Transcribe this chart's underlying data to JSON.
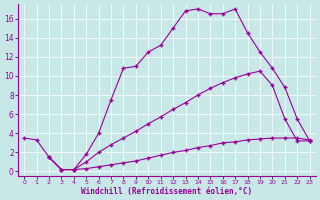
{
  "xlabel": "Windchill (Refroidissement éolien,°C)",
  "bg_color": "#c8e8e8",
  "line_color": "#990099",
  "xlim": [
    -0.5,
    23.5
  ],
  "ylim": [
    -0.5,
    17.5
  ],
  "yticks": [
    0,
    2,
    4,
    6,
    8,
    10,
    12,
    14,
    16
  ],
  "xticks": [
    0,
    1,
    2,
    3,
    4,
    5,
    6,
    7,
    8,
    9,
    10,
    11,
    12,
    13,
    14,
    15,
    16,
    17,
    18,
    19,
    20,
    21,
    22,
    23
  ],
  "line1_x": [
    0,
    1,
    2,
    3,
    4,
    5,
    6,
    7,
    8,
    9,
    10,
    11,
    12,
    13,
    14,
    15,
    16,
    17,
    18,
    19,
    20,
    21,
    22,
    23
  ],
  "line1_y": [
    3.5,
    3.3,
    1.5,
    0.2,
    0.2,
    1.8,
    4.0,
    7.5,
    10.8,
    11.0,
    12.5,
    13.2,
    15.0,
    16.8,
    17.0,
    16.5,
    16.5,
    17.0,
    14.5,
    12.5,
    10.8,
    8.8,
    5.5,
    3.2
  ],
  "line2_x": [
    2,
    3,
    4,
    5,
    6,
    7,
    8,
    9,
    10,
    11,
    12,
    13,
    14,
    15,
    16,
    17,
    18,
    19,
    20,
    21,
    22,
    23
  ],
  "line2_y": [
    1.5,
    0.2,
    0.2,
    1.0,
    2.0,
    2.8,
    3.5,
    4.2,
    5.0,
    5.7,
    6.5,
    7.2,
    8.0,
    8.7,
    9.3,
    9.8,
    10.2,
    10.5,
    9.0,
    5.5,
    3.2,
    3.2
  ],
  "line3_x": [
    2,
    3,
    4,
    5,
    6,
    7,
    8,
    9,
    10,
    11,
    12,
    13,
    14,
    15,
    16,
    17,
    18,
    19,
    20,
    21,
    22,
    23
  ],
  "line3_y": [
    1.5,
    0.2,
    0.2,
    0.3,
    0.5,
    0.7,
    0.9,
    1.1,
    1.4,
    1.7,
    2.0,
    2.2,
    2.5,
    2.7,
    3.0,
    3.1,
    3.3,
    3.4,
    3.5,
    3.5,
    3.5,
    3.3
  ]
}
